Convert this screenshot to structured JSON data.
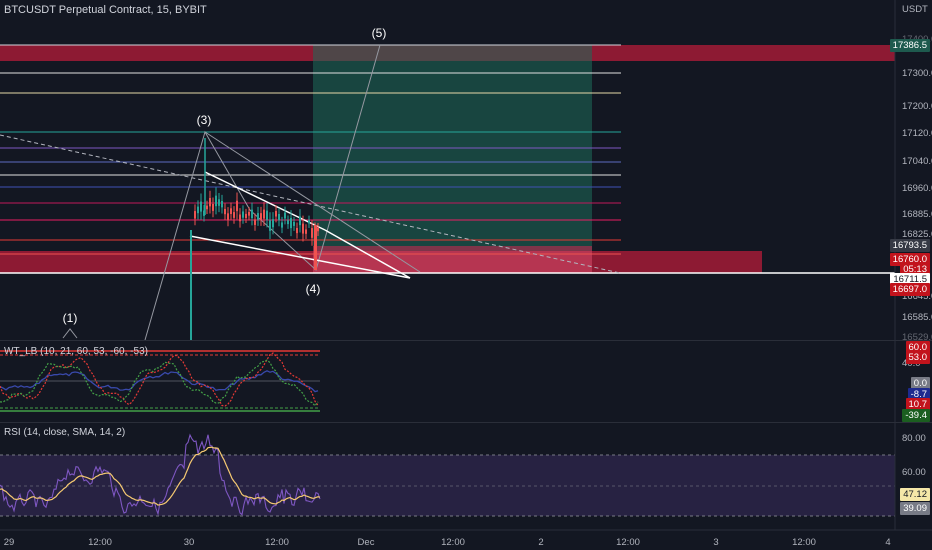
{
  "header": {
    "symbol_title": "BTCUSDT Perpetual Contract, 15, BYBIT"
  },
  "price_axis": {
    "currency": "USDT",
    "ticks": [
      "17400.0",
      "17300.0",
      "17200.0",
      "17120.0",
      "17040.0",
      "16960.0",
      "16885.0",
      "16825.0",
      "16645.0",
      "16585.0",
      "16529.0"
    ],
    "tags": [
      {
        "value": "17386.5",
        "bg": "#1e5a4e",
        "fg": "#ffffff"
      },
      {
        "value": "16793.5",
        "bg": "#363a45",
        "fg": "#ffffff"
      },
      {
        "value": "16760.0",
        "bg": "#c2131c",
        "fg": "#ffffff"
      },
      {
        "value": "05:13",
        "bg": "#c2131c",
        "fg": "#ffffff"
      },
      {
        "value": "16711.5",
        "bg": "#ffffff",
        "fg": "#131722"
      },
      {
        "value": "16697.0",
        "bg": "#c2131c",
        "fg": "#ffffff"
      }
    ]
  },
  "waves": [
    "(1)",
    "(3)",
    "(4)",
    "(5)"
  ],
  "wt_indicator": {
    "title": "WT_LB (10, 21, 60, 53, -60, -53)",
    "axis_ticks": [
      "40.0"
    ],
    "tags": [
      {
        "value": "60.0",
        "bg": "#c2131c",
        "fg": "#ffffff"
      },
      {
        "value": "53.0",
        "bg": "#c2131c",
        "fg": "#ffffff"
      },
      {
        "value": "0.0",
        "bg": "#787b86",
        "fg": "#ffffff"
      },
      {
        "value": "-8.7",
        "bg": "#1e2a8f",
        "fg": "#ffffff"
      },
      {
        "value": "10.7",
        "bg": "#c2131c",
        "fg": "#ffffff"
      },
      {
        "value": "-39.4",
        "bg": "#1b5e20",
        "fg": "#ffffff"
      }
    ]
  },
  "rsi_indicator": {
    "title": "RSI (14, close, SMA, 14, 2)",
    "axis_ticks": [
      "80.00",
      "60.00"
    ],
    "tags": [
      {
        "value": "47.12",
        "bg": "#f5e7a8",
        "fg": "#131722"
      },
      {
        "value": "39.09",
        "bg": "#787b86",
        "fg": "#ffffff"
      }
    ]
  },
  "time_axis": [
    "29",
    "12:00",
    "30",
    "12:00",
    "Dec",
    "12:00",
    "2",
    "12:00",
    "3",
    "12:00",
    "4"
  ],
  "colors": {
    "background": "#131722",
    "red_zone": "#b71c3a",
    "green_zone": "#1e6b5a",
    "rsi_band": "#2a2346",
    "rsi_line": "#7e57c2",
    "rsi_ma": "#f5c971",
    "wt_red": "#e53935",
    "wt_green": "#43a047",
    "wt_blue": "#3949ab"
  }
}
